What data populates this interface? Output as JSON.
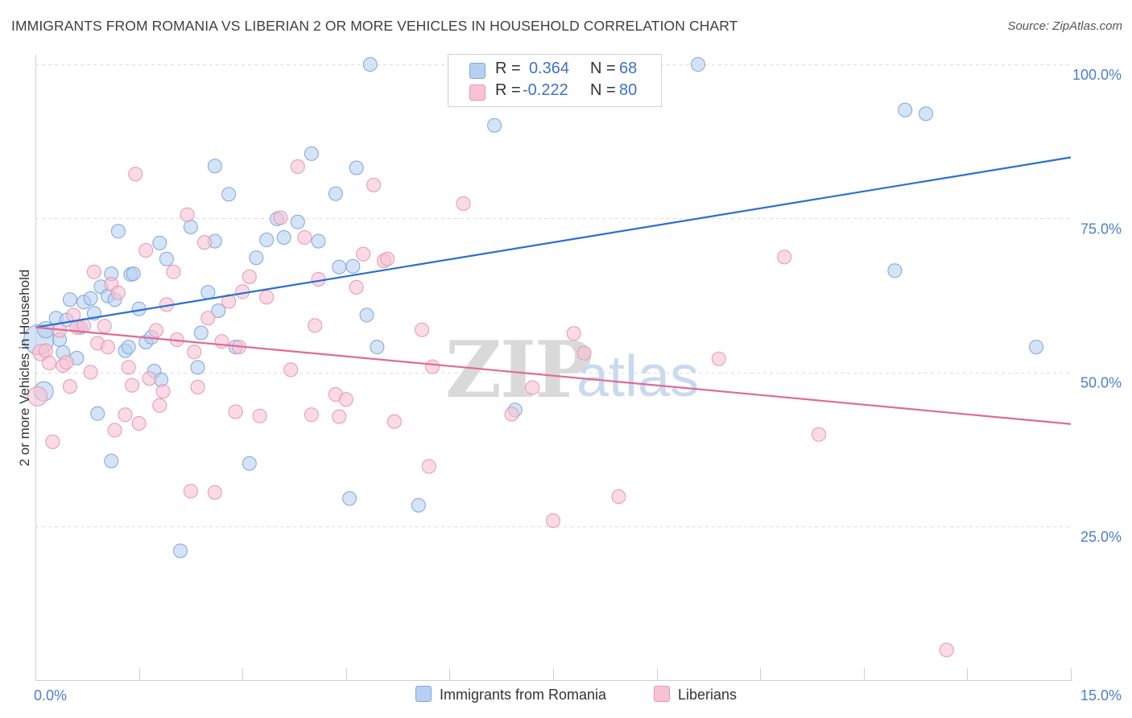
{
  "title": "IMMIGRANTS FROM ROMANIA VS LIBERIAN 2 OR MORE VEHICLES IN HOUSEHOLD CORRELATION CHART",
  "source": "Source: ZipAtlas.com",
  "watermark": {
    "zip": "ZIP",
    "atlas": "atlas"
  },
  "legend": {
    "rows": [
      {
        "r_label": "R =",
        "r_value": "0.364",
        "n_label": "N =",
        "n_value": "68"
      },
      {
        "r_label": "R =",
        "r_value": "-0.222",
        "n_label": "N =",
        "n_value": "80"
      }
    ]
  },
  "colors": {
    "blue_fill": "#b8d0f0",
    "blue_stroke": "#7ea6dc",
    "blue_line": "#2b6fcf",
    "pink_fill": "#f6c3d4",
    "pink_stroke": "#e895b0",
    "pink_line": "#e06b96",
    "tick_text": "#4a7fd0"
  },
  "chart_data": {
    "type": "scatter",
    "title": "IMMIGRANTS FROM ROMANIA VS LIBERIAN 2 OR MORE VEHICLES IN HOUSEHOLD CORRELATION CHART",
    "xlabel": "",
    "ylabel": "2 or more Vehicles in Household",
    "xlim": [
      0,
      15
    ],
    "ylim": [
      0,
      105
    ],
    "x_tick_labels": [
      "0.0%",
      "15.0%"
    ],
    "y_ticks": [
      25,
      50,
      75,
      100
    ],
    "y_tick_labels": [
      "25.0%",
      "50.0%",
      "75.0%",
      "100.0%"
    ],
    "grid": true,
    "legend_position": "top-center",
    "series": [
      {
        "name": "Immigrants from Romania",
        "color": "#b8d0f0",
        "trend": {
          "x": [
            0,
            15
          ],
          "y": [
            57.3,
            84.9
          ]
        },
        "points": [
          [
            0.05,
            55.3,
            22
          ],
          [
            0.12,
            46.9,
            14
          ],
          [
            0.15,
            56.9,
            12
          ],
          [
            0.3,
            58.8,
            10
          ],
          [
            0.35,
            55.3,
            10
          ],
          [
            0.4,
            53.2,
            10
          ],
          [
            0.45,
            58.5,
            10
          ],
          [
            0.5,
            61.8,
            10
          ],
          [
            0.6,
            52.3,
            10
          ],
          [
            0.65,
            57.3,
            10
          ],
          [
            0.7,
            61.4,
            10
          ],
          [
            0.8,
            62.0,
            10
          ],
          [
            0.85,
            59.6,
            10
          ],
          [
            0.9,
            43.3,
            10
          ],
          [
            0.95,
            63.9,
            10
          ],
          [
            1.05,
            62.4,
            10
          ],
          [
            1.1,
            35.6,
            10
          ],
          [
            1.1,
            66.0,
            10
          ],
          [
            1.15,
            61.8,
            10
          ],
          [
            1.2,
            72.9,
            10
          ],
          [
            1.3,
            53.5,
            10
          ],
          [
            1.35,
            54.1,
            10
          ],
          [
            1.38,
            65.9,
            10
          ],
          [
            1.42,
            66.0,
            10
          ],
          [
            1.5,
            60.3,
            10
          ],
          [
            1.6,
            54.9,
            10
          ],
          [
            1.68,
            55.7,
            10
          ],
          [
            1.72,
            50.2,
            10
          ],
          [
            1.8,
            71.0,
            10
          ],
          [
            1.82,
            48.8,
            10
          ],
          [
            1.9,
            68.4,
            10
          ],
          [
            2.1,
            21.0,
            10
          ],
          [
            2.25,
            73.6,
            10
          ],
          [
            2.35,
            50.8,
            10
          ],
          [
            2.4,
            56.4,
            10
          ],
          [
            2.5,
            63.0,
            10
          ],
          [
            2.6,
            71.3,
            10
          ],
          [
            2.6,
            83.5,
            10
          ],
          [
            2.65,
            60.0,
            10
          ],
          [
            2.8,
            78.9,
            10
          ],
          [
            2.9,
            54.1,
            10
          ],
          [
            3.1,
            35.2,
            10
          ],
          [
            3.2,
            68.6,
            10
          ],
          [
            3.35,
            71.5,
            10
          ],
          [
            3.5,
            74.9,
            10
          ],
          [
            3.6,
            71.9,
            10
          ],
          [
            3.8,
            74.4,
            10
          ],
          [
            4.0,
            85.5,
            10
          ],
          [
            4.1,
            71.3,
            10
          ],
          [
            4.35,
            79.0,
            10
          ],
          [
            4.4,
            67.1,
            10
          ],
          [
            4.55,
            29.5,
            10
          ],
          [
            4.6,
            67.2,
            10
          ],
          [
            4.65,
            83.2,
            10
          ],
          [
            4.8,
            59.3,
            10
          ],
          [
            4.85,
            100.0,
            10
          ],
          [
            4.95,
            54.1,
            10
          ],
          [
            5.55,
            28.4,
            10
          ],
          [
            6.65,
            90.1,
            10
          ],
          [
            6.95,
            43.9,
            10
          ],
          [
            9.6,
            100.0,
            10
          ],
          [
            12.45,
            66.5,
            10
          ],
          [
            12.6,
            92.6,
            10
          ],
          [
            12.9,
            92.0,
            10
          ],
          [
            14.5,
            54.1,
            10
          ]
        ]
      },
      {
        "name": "Liberians",
        "color": "#f6c3d4",
        "trend": {
          "x": [
            0,
            15
          ],
          "y": [
            57.3,
            41.6
          ]
        },
        "points": [
          [
            0.03,
            46.1,
            14
          ],
          [
            0.08,
            53.2,
            12
          ],
          [
            0.15,
            53.5,
            10
          ],
          [
            0.2,
            51.5,
            10
          ],
          [
            0.25,
            38.7,
            10
          ],
          [
            0.35,
            56.8,
            10
          ],
          [
            0.4,
            51.1,
            10
          ],
          [
            0.45,
            51.6,
            10
          ],
          [
            0.5,
            47.7,
            10
          ],
          [
            0.55,
            59.3,
            10
          ],
          [
            0.6,
            57.3,
            10
          ],
          [
            0.7,
            57.6,
            10
          ],
          [
            0.8,
            50.0,
            10
          ],
          [
            0.85,
            66.3,
            10
          ],
          [
            0.9,
            54.7,
            10
          ],
          [
            1.0,
            57.5,
            10
          ],
          [
            1.05,
            54.1,
            10
          ],
          [
            1.1,
            64.3,
            10
          ],
          [
            1.15,
            40.6,
            10
          ],
          [
            1.2,
            62.9,
            10
          ],
          [
            1.3,
            43.1,
            10
          ],
          [
            1.35,
            50.8,
            10
          ],
          [
            1.4,
            47.9,
            10
          ],
          [
            1.45,
            82.2,
            10
          ],
          [
            1.5,
            41.7,
            10
          ],
          [
            1.6,
            69.8,
            10
          ],
          [
            1.65,
            49.0,
            10
          ],
          [
            1.75,
            56.8,
            10
          ],
          [
            1.8,
            44.6,
            10
          ],
          [
            1.85,
            46.9,
            10
          ],
          [
            1.9,
            61.0,
            10
          ],
          [
            2.0,
            66.3,
            10
          ],
          [
            2.05,
            55.3,
            10
          ],
          [
            2.2,
            75.6,
            10
          ],
          [
            2.25,
            30.7,
            10
          ],
          [
            2.3,
            53.3,
            10
          ],
          [
            2.35,
            47.6,
            10
          ],
          [
            2.45,
            71.1,
            10
          ],
          [
            2.5,
            58.8,
            10
          ],
          [
            2.6,
            30.5,
            10
          ],
          [
            2.7,
            55.0,
            10
          ],
          [
            2.8,
            61.5,
            10
          ],
          [
            2.9,
            43.6,
            10
          ],
          [
            2.95,
            54.1,
            10
          ],
          [
            3.0,
            63.1,
            10
          ],
          [
            3.1,
            65.5,
            10
          ],
          [
            3.25,
            42.9,
            10
          ],
          [
            3.35,
            62.2,
            10
          ],
          [
            3.55,
            75.1,
            10
          ],
          [
            3.7,
            50.4,
            10
          ],
          [
            3.8,
            83.4,
            10
          ],
          [
            3.9,
            71.9,
            10
          ],
          [
            4.0,
            43.1,
            10
          ],
          [
            4.05,
            57.6,
            10
          ],
          [
            4.1,
            65.1,
            10
          ],
          [
            4.35,
            46.4,
            10
          ],
          [
            4.4,
            42.8,
            10
          ],
          [
            4.5,
            45.6,
            10
          ],
          [
            4.65,
            63.8,
            10
          ],
          [
            4.75,
            69.2,
            10
          ],
          [
            4.9,
            80.4,
            10
          ],
          [
            5.05,
            68.1,
            10
          ],
          [
            5.1,
            68.4,
            10
          ],
          [
            5.2,
            42.0,
            10
          ],
          [
            5.6,
            56.9,
            10
          ],
          [
            5.7,
            34.7,
            10
          ],
          [
            5.75,
            50.9,
            10
          ],
          [
            6.2,
            77.4,
            10
          ],
          [
            6.9,
            43.2,
            10
          ],
          [
            7.2,
            47.5,
            10
          ],
          [
            7.5,
            25.9,
            10
          ],
          [
            7.8,
            56.3,
            10
          ],
          [
            7.95,
            53.1,
            10
          ],
          [
            8.45,
            29.8,
            10
          ],
          [
            9.9,
            52.2,
            10
          ],
          [
            10.85,
            68.7,
            10
          ],
          [
            11.35,
            39.9,
            10
          ],
          [
            13.2,
            4.9,
            10
          ]
        ]
      }
    ]
  }
}
